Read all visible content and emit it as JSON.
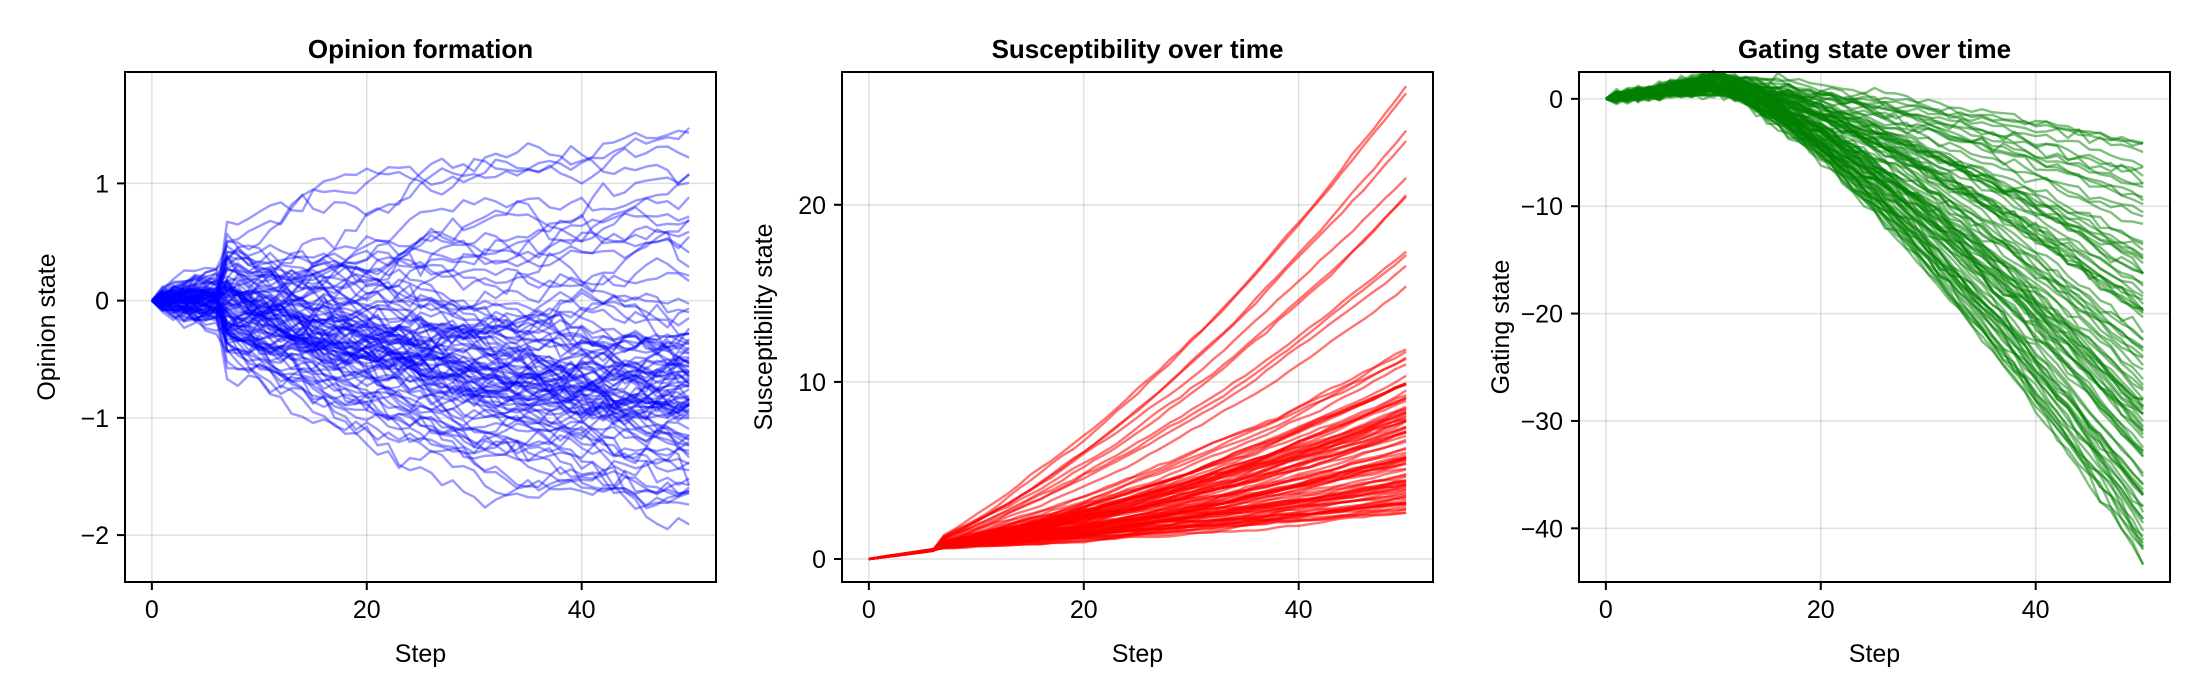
{
  "chart_data": [
    {
      "type": "line",
      "title": "Opinion formation",
      "xlabel": "Step",
      "ylabel": "Opinion state",
      "xlim": [
        -2.5,
        52.5
      ],
      "ylim": [
        -2.4,
        1.95
      ],
      "xticks": [
        0,
        20,
        40
      ],
      "yticks": [
        -2,
        -1,
        0,
        1
      ],
      "grid": true,
      "color": "#0000FF",
      "line_opacity": 0.4,
      "n_series": 100,
      "steps": 50,
      "final_value_range": [
        -2.35,
        1.95
      ]
    },
    {
      "type": "line",
      "title": "Susceptibility over time",
      "xlabel": "Step",
      "ylabel": "Susceptibility state",
      "xlim": [
        -2.5,
        52.5
      ],
      "ylim": [
        -1.3,
        27.5
      ],
      "xticks": [
        0,
        20,
        40
      ],
      "yticks": [
        0,
        10,
        20
      ],
      "grid": true,
      "color": "#FF0000",
      "line_opacity": 0.55,
      "n_series": 100,
      "steps": 50,
      "final_value_range": [
        2.0,
        27.3
      ]
    },
    {
      "type": "line",
      "title": "Gating state over time",
      "xlabel": "Step",
      "ylabel": "Gating state",
      "xlim": [
        -2.5,
        52.5
      ],
      "ylim": [
        -45,
        2.5
      ],
      "xticks": [
        0,
        20,
        40
      ],
      "yticks": [
        -40,
        -30,
        -20,
        -10,
        0
      ],
      "grid": true,
      "color": "#008000",
      "line_opacity": 0.5,
      "n_series": 100,
      "steps": 50,
      "final_value_range": [
        -44.5,
        -3.5
      ]
    }
  ]
}
